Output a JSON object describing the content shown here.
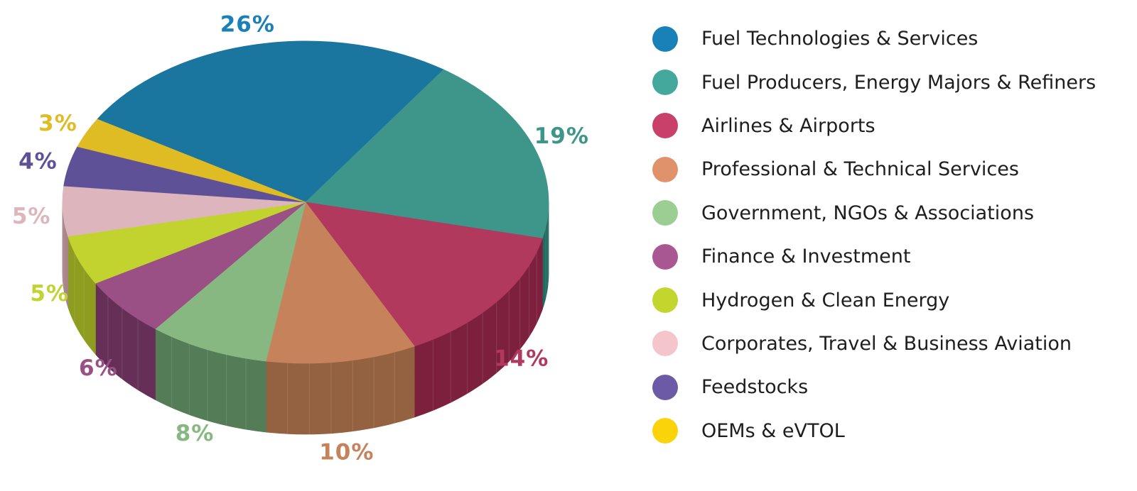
{
  "chart_data": {
    "type": "pie",
    "style": "3d",
    "legend_position": "right",
    "slices": [
      {
        "name": "Fuel Technologies & Services",
        "value": 26,
        "label": "26%",
        "color": "#1a759f",
        "side_color": "#115470"
      },
      {
        "name": "Fuel Producers, Energy Majors & Refiners",
        "value": 19,
        "label": "19%",
        "color": "#3e968b",
        "side_color": "#236a60"
      },
      {
        "name": "Airlines & Airports",
        "value": 14,
        "label": "14%",
        "color": "#b0395d",
        "side_color": "#7d203e"
      },
      {
        "name": "Professional & Technical Services",
        "value": 10,
        "label": "10%",
        "color": "#c6825a",
        "side_color": "#946240"
      },
      {
        "name": "Government, NGOs & Associations",
        "value": 8,
        "label": "8%",
        "color": "#88b882",
        "side_color": "#547d57"
      },
      {
        "name": "Finance & Investment",
        "value": 6,
        "label": "6%",
        "color": "#9a5085",
        "side_color": "#662f57"
      },
      {
        "name": "Hydrogen & Clean Energy",
        "value": 5,
        "label": "5%",
        "color": "#c2d330",
        "side_color": "#8e9c20"
      },
      {
        "name": "Corporates, Travel & Business Aviation",
        "value": 5,
        "label": "5%",
        "color": "#ddb6bd",
        "side_color": "#a8858b"
      },
      {
        "name": "Feedstocks",
        "value": 4,
        "label": "4%",
        "color": "#5f5197",
        "side_color": "#3e3568"
      },
      {
        "name": "OEMs & eVTOL",
        "value": 3,
        "label": "3%",
        "color": "#dfbc24",
        "side_color": "#a38818"
      }
    ],
    "legend": [
      {
        "label": "Fuel Technologies & Services",
        "color": "#1a80b8"
      },
      {
        "label": "Fuel Producers, Energy Majors & Refiners",
        "color": "#45a89c"
      },
      {
        "label": "Airlines & Airports",
        "color": "#c9406b"
      },
      {
        "label": "Professional & Technical Services",
        "color": "#e0936a"
      },
      {
        "label": "Government, NGOs & Associations",
        "color": "#9ccd92"
      },
      {
        "label": "Finance & Investment",
        "color": "#a85793"
      },
      {
        "label": "Hydrogen & Clean Energy",
        "color": "#c3d62e"
      },
      {
        "label": "Corporates, Travel & Business Aviation",
        "color": "#f4c6cb"
      },
      {
        "label": "Feedstocks",
        "color": "#6c5aa6"
      },
      {
        "label": "OEMs & eVTOL",
        "color": "#fbd30a"
      }
    ],
    "label_colors": [
      "#1a80b8",
      "#3e968b",
      "#b0395d",
      "#c6825a",
      "#88b882",
      "#9a5085",
      "#c2d330",
      "#ddb6bd",
      "#5f5197",
      "#dfbc24"
    ]
  }
}
